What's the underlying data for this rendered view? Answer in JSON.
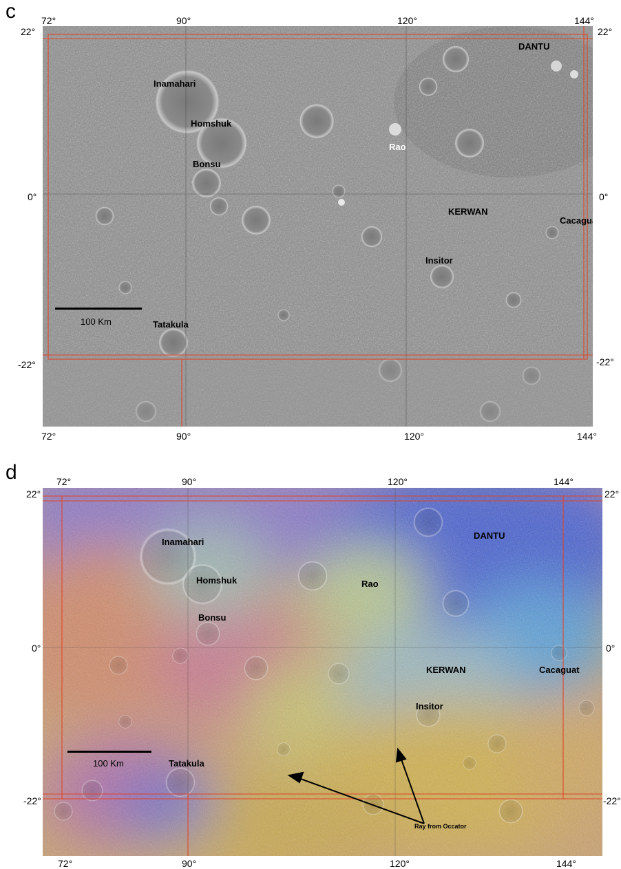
{
  "panels": {
    "c": {
      "letter": "c",
      "ticks": {
        "top": [
          "72°",
          "90°",
          "120°",
          "144°"
        ],
        "bottom": [
          "72°",
          "90°",
          "120°",
          "144°"
        ],
        "left": [
          "22°",
          "0°",
          "-22°"
        ],
        "right": [
          "22°",
          "0°",
          "-22°"
        ]
      },
      "features": {
        "dantu": "DANTU",
        "inamahari": "Inamahari",
        "homshuk": "Homshuk",
        "rao": "Rao",
        "bonsu": "Bonsu",
        "kerwan": "KERWAN",
        "cacaguat": "Cacaguat",
        "insitor": "Insitor",
        "tatakula": "Tatakula"
      },
      "scale_label": "100 Km",
      "colors": {
        "base": "#8f8f8f",
        "grid": "#e0442a"
      }
    },
    "d": {
      "letter": "d",
      "ticks": {
        "top": [
          "72°",
          "90°",
          "120°",
          "144°"
        ],
        "bottom": [
          "72°",
          "90°",
          "120°",
          "144°"
        ],
        "left": [
          "22°",
          "0°",
          "-22°"
        ],
        "right": [
          "22°",
          "0°",
          "-22°"
        ]
      },
      "features": {
        "inamahari": "Inamahari",
        "dantu": "DANTU",
        "homshuk": "Homshuk",
        "rao": "Rao",
        "bonsu": "Bonsu",
        "kerwan": "KERWAN",
        "cacaguat": "Cacaguat",
        "insitor": "Insitor",
        "tatakula": "Tatakula"
      },
      "scale_label": "100 Km",
      "annotation": "Ray from Occator",
      "colors": {
        "blue": "#4a5fd0",
        "cyan": "#4fb8d8",
        "green": "#b8d870",
        "yellow": "#d8b848",
        "orange": "#d09050",
        "red": "#c07070",
        "grid": "#e0442a"
      }
    }
  }
}
